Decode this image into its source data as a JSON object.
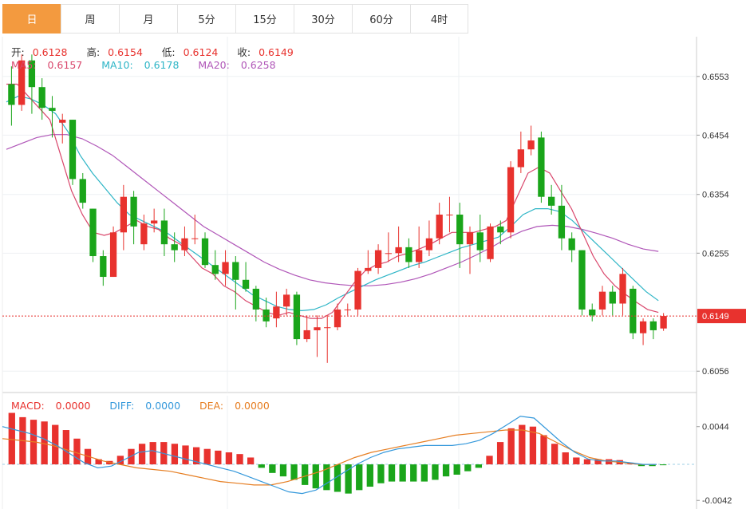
{
  "tabs": [
    {
      "label": "日",
      "active": true
    },
    {
      "label": "周",
      "active": false
    },
    {
      "label": "月",
      "active": false
    },
    {
      "label": "5分",
      "active": false
    },
    {
      "label": "15分",
      "active": false
    },
    {
      "label": "30分",
      "active": false
    },
    {
      "label": "60分",
      "active": false
    },
    {
      "label": "4时",
      "active": false
    }
  ],
  "ohlc": {
    "open_label": "开:",
    "open": "0.6128",
    "high_label": "高:",
    "high": "0.6154",
    "low_label": "低:",
    "low": "0.6124",
    "close_label": "收:",
    "close": "0.6149"
  },
  "ma": {
    "ma5_label": "MA5: ",
    "ma5": "0.6157",
    "ma10_label": "MA10: ",
    "ma10": "0.6178",
    "ma20_label": "MA20: ",
    "ma20": "0.6258"
  },
  "macd_legend": {
    "macd_label": "MACD: ",
    "macd": "0.0000",
    "diff_label": "DIFF: ",
    "diff": "0.0000",
    "dea_label": "DEA: ",
    "dea": "0.0000"
  },
  "colors": {
    "up": "#e8322e",
    "down": "#1aa51a",
    "ma5": "#d9466b",
    "ma10": "#2db5c6",
    "ma20": "#b056b8",
    "diff": "#3498db",
    "dea": "#e67e22",
    "active_tab": "#f39a3f"
  },
  "chart_data": [
    {
      "type": "candlestick",
      "y_ticks": [
        "0.6553",
        "0.6454",
        "0.6354",
        "0.6255",
        "0.6056"
      ],
      "ylim": [
        0.602,
        0.662
      ],
      "last_price_label": "0.6149",
      "candles": [
        [
          0.654,
          0.6505,
          0.657,
          0.647
        ],
        [
          0.6505,
          0.658,
          0.659,
          0.6495
        ],
        [
          0.658,
          0.6535,
          0.659,
          0.649
        ],
        [
          0.6535,
          0.65,
          0.655,
          0.648
        ],
        [
          0.65,
          0.6495,
          0.652,
          0.645
        ],
        [
          0.6475,
          0.648,
          0.649,
          0.644
        ],
        [
          0.648,
          0.638,
          0.648,
          0.637
        ],
        [
          0.638,
          0.634,
          0.639,
          0.633
        ],
        [
          0.633,
          0.625,
          0.633,
          0.624
        ],
        [
          0.625,
          0.6215,
          0.626,
          0.62
        ],
        [
          0.6215,
          0.629,
          0.63,
          0.6215
        ],
        [
          0.629,
          0.635,
          0.637,
          0.626
        ],
        [
          0.635,
          0.63,
          0.636,
          0.627
        ],
        [
          0.627,
          0.6305,
          0.632,
          0.626
        ],
        [
          0.6305,
          0.631,
          0.633,
          0.629
        ],
        [
          0.631,
          0.627,
          0.633,
          0.625
        ],
        [
          0.627,
          0.626,
          0.629,
          0.624
        ],
        [
          0.626,
          0.628,
          0.63,
          0.625
        ],
        [
          0.628,
          0.628,
          0.632,
          0.627
        ],
        [
          0.628,
          0.6235,
          0.629,
          0.623
        ],
        [
          0.6235,
          0.622,
          0.626,
          0.621
        ],
        [
          0.622,
          0.624,
          0.626,
          0.62
        ],
        [
          0.624,
          0.621,
          0.625,
          0.616
        ],
        [
          0.621,
          0.6195,
          0.624,
          0.619
        ],
        [
          0.6195,
          0.616,
          0.62,
          0.614
        ],
        [
          0.616,
          0.614,
          0.618,
          0.613
        ],
        [
          0.6145,
          0.6165,
          0.619,
          0.613
        ],
        [
          0.6165,
          0.6185,
          0.6195,
          0.615
        ],
        [
          0.6185,
          0.611,
          0.619,
          0.61
        ],
        [
          0.611,
          0.6125,
          0.615,
          0.6105
        ],
        [
          0.6125,
          0.613,
          0.615,
          0.608
        ],
        [
          0.613,
          0.613,
          0.615,
          0.607
        ],
        [
          0.613,
          0.616,
          0.617,
          0.6125
        ],
        [
          0.616,
          0.616,
          0.617,
          0.615
        ],
        [
          0.616,
          0.6225,
          0.623,
          0.615
        ],
        [
          0.6225,
          0.623,
          0.626,
          0.622
        ],
        [
          0.623,
          0.626,
          0.627,
          0.622
        ],
        [
          0.6255,
          0.6255,
          0.629,
          0.624
        ],
        [
          0.6255,
          0.6265,
          0.63,
          0.624
        ],
        [
          0.6265,
          0.624,
          0.628,
          0.623
        ],
        [
          0.624,
          0.626,
          0.63,
          0.623
        ],
        [
          0.626,
          0.628,
          0.631,
          0.625
        ],
        [
          0.628,
          0.632,
          0.634,
          0.627
        ],
        [
          0.632,
          0.632,
          0.635,
          0.629
        ],
        [
          0.632,
          0.627,
          0.634,
          0.623
        ],
        [
          0.627,
          0.629,
          0.63,
          0.622
        ],
        [
          0.629,
          0.626,
          0.632,
          0.624
        ],
        [
          0.6245,
          0.63,
          0.6305,
          0.624
        ],
        [
          0.63,
          0.629,
          0.631,
          0.627
        ],
        [
          0.629,
          0.64,
          0.641,
          0.628
        ],
        [
          0.64,
          0.643,
          0.646,
          0.639
        ],
        [
          0.643,
          0.6445,
          0.647,
          0.642
        ],
        [
          0.645,
          0.635,
          0.646,
          0.634
        ],
        [
          0.635,
          0.6335,
          0.637,
          0.632
        ],
        [
          0.6335,
          0.628,
          0.637,
          0.626
        ],
        [
          0.628,
          0.626,
          0.629,
          0.624
        ],
        [
          0.626,
          0.616,
          0.626,
          0.615
        ],
        [
          0.616,
          0.615,
          0.617,
          0.614
        ],
        [
          0.616,
          0.619,
          0.62,
          0.615
        ],
        [
          0.619,
          0.617,
          0.62,
          0.615
        ],
        [
          0.617,
          0.622,
          0.623,
          0.615
        ],
        [
          0.6195,
          0.612,
          0.62,
          0.611
        ],
        [
          0.612,
          0.614,
          0.6145,
          0.61
        ],
        [
          0.614,
          0.6125,
          0.6145,
          0.611
        ],
        [
          0.6128,
          0.6149,
          0.6154,
          0.6124
        ]
      ],
      "ma5": [
        0.654,
        0.654,
        0.652,
        0.65,
        0.648,
        0.642,
        0.636,
        0.632,
        0.629,
        0.6285,
        0.629,
        0.63,
        0.631,
        0.63,
        0.6295,
        0.628,
        0.627,
        0.625,
        0.623,
        0.622,
        0.62,
        0.619,
        0.6175,
        0.6165,
        0.6155,
        0.615,
        0.6155,
        0.615,
        0.6145,
        0.6145,
        0.6155,
        0.618,
        0.6205,
        0.6225,
        0.6235,
        0.624,
        0.625,
        0.6255,
        0.6262,
        0.627,
        0.628,
        0.629,
        0.629,
        0.629,
        0.6295,
        0.63,
        0.631,
        0.635,
        0.639,
        0.64,
        0.639,
        0.636,
        0.633,
        0.629,
        0.625,
        0.622,
        0.62,
        0.6185,
        0.6172,
        0.616,
        0.6155
      ],
      "ma10": [
        0.651,
        0.652,
        0.6515,
        0.6505,
        0.649,
        0.646,
        0.642,
        0.639,
        0.6365,
        0.634,
        0.632,
        0.631,
        0.63,
        0.629,
        0.6275,
        0.626,
        0.6245,
        0.623,
        0.6215,
        0.62,
        0.6185,
        0.6175,
        0.6165,
        0.616,
        0.6158,
        0.616,
        0.6168,
        0.618,
        0.619,
        0.62,
        0.621,
        0.6218,
        0.6226,
        0.6234,
        0.624,
        0.6248,
        0.6256,
        0.6264,
        0.627,
        0.6276,
        0.6282,
        0.63,
        0.632,
        0.633,
        0.633,
        0.6325,
        0.631,
        0.629,
        0.627,
        0.625,
        0.623,
        0.621,
        0.619,
        0.6175
      ],
      "ma20": [
        0.643,
        0.644,
        0.645,
        0.6455,
        0.6455,
        0.6448,
        0.6435,
        0.642,
        0.64,
        0.638,
        0.636,
        0.634,
        0.632,
        0.63,
        0.6285,
        0.627,
        0.6255,
        0.624,
        0.6228,
        0.6218,
        0.621,
        0.6205,
        0.6202,
        0.62,
        0.62,
        0.6202,
        0.6206,
        0.6212,
        0.622,
        0.623,
        0.624,
        0.6252,
        0.6265,
        0.628,
        0.6292,
        0.63,
        0.6302,
        0.63,
        0.6295,
        0.6288,
        0.628,
        0.627,
        0.6262,
        0.6258
      ],
      "macd_hist": [
        0.006,
        0.0055,
        0.0052,
        0.005,
        0.0046,
        0.004,
        0.003,
        0.0018,
        0.0006,
        0.0004,
        0.001,
        0.0018,
        0.0024,
        0.0026,
        0.0026,
        0.0024,
        0.0022,
        0.002,
        0.0018,
        0.0016,
        0.0014,
        0.0012,
        0.0008,
        -0.0004,
        -0.001,
        -0.0014,
        -0.0018,
        -0.0024,
        -0.0028,
        -0.003,
        -0.0032,
        -0.0034,
        -0.003,
        -0.0026,
        -0.0022,
        -0.002,
        -0.002,
        -0.002,
        -0.002,
        -0.0018,
        -0.0014,
        -0.0012,
        -0.0008,
        -0.0004,
        0.001,
        0.0026,
        0.0042,
        0.0046,
        0.0044,
        0.0034,
        0.0024,
        0.0014,
        0.0008,
        0.0006,
        0.0006,
        0.0006,
        0.0005,
        0.0002,
        -0.0002,
        -0.0002,
        -0.0001
      ],
      "diff": [
        0.0044,
        0.004,
        0.0036,
        0.003,
        0.0022,
        0.0012,
        0.0002,
        -0.0004,
        -0.0002,
        0.0006,
        0.0014,
        0.0016,
        0.0012,
        0.0008,
        0.0004,
        0.0,
        -0.0004,
        -0.0008,
        -0.0014,
        -0.002,
        -0.0026,
        -0.0032,
        -0.0034,
        -0.003,
        -0.002,
        -0.001,
        0.0,
        0.0008,
        0.0014,
        0.0018,
        0.002,
        0.0022,
        0.0022,
        0.0022,
        0.0024,
        0.0028,
        0.0036,
        0.0046,
        0.0056,
        0.0054,
        0.004,
        0.0026,
        0.0014,
        0.0006,
        0.0004,
        0.0004,
        0.0002,
        0.0,
        0.0
      ],
      "dea": [
        0.003,
        0.0028,
        0.0026,
        0.0022,
        0.0016,
        0.001,
        0.0004,
        0.0,
        -0.0004,
        -0.0006,
        -0.0008,
        -0.0012,
        -0.0016,
        -0.002,
        -0.0022,
        -0.0024,
        -0.0024,
        -0.002,
        -0.0014,
        -0.0008,
        0.0,
        0.0008,
        0.0014,
        0.0018,
        0.0022,
        0.0026,
        0.003,
        0.0034,
        0.0036,
        0.0038,
        0.004,
        0.004,
        0.0036,
        0.0026,
        0.0016,
        0.0008,
        0.0004,
        0.0002,
        0.0,
        0.0
      ],
      "macd_y_ticks": [
        "0.0044",
        "-0.0042"
      ],
      "macd_ylim": [
        -0.0052,
        0.008
      ]
    }
  ]
}
